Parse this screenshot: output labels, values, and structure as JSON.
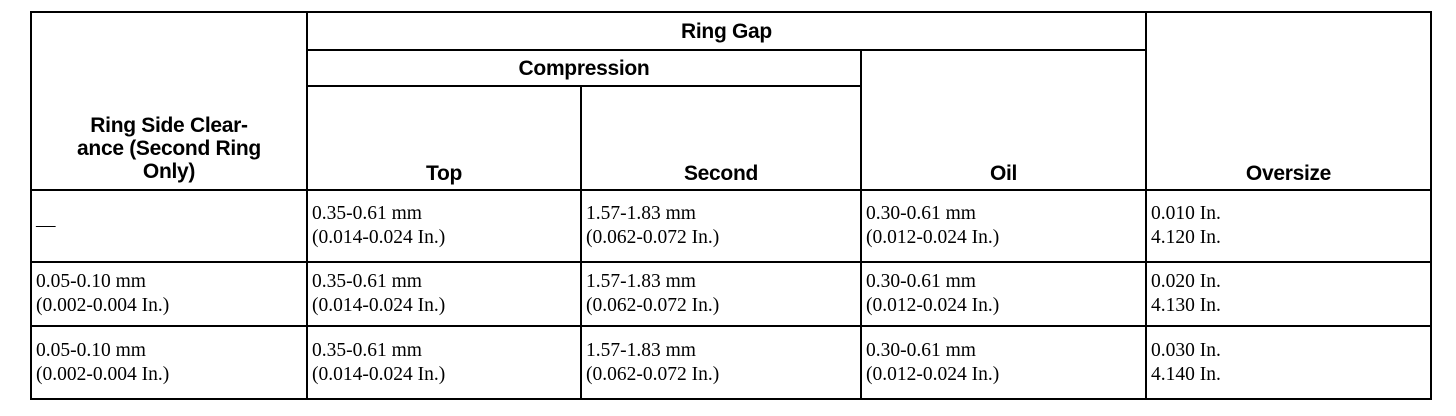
{
  "headers": {
    "ring_side_clearance": [
      "Ring Side Clear-",
      "ance (Second Ring",
      "Only)"
    ],
    "ring_gap": "Ring Gap",
    "compression": "Compression",
    "top": "Top",
    "second": "Second",
    "oil": "Oil",
    "oversize": "Oversize"
  },
  "rows": [
    {
      "side_clearance": [
        "—",
        ""
      ],
      "top": [
        "0.35-0.61 mm",
        "(0.014-0.024 In.)"
      ],
      "second": [
        "1.57-1.83 mm",
        "(0.062-0.072 In.)"
      ],
      "oil": [
        "0.30-0.61 mm",
        "(0.012-0.024 In.)"
      ],
      "oversize": [
        "0.010 In.",
        "4.120 In."
      ]
    },
    {
      "side_clearance": [
        "0.05-0.10 mm",
        "(0.002-0.004 In.)"
      ],
      "top": [
        "0.35-0.61 mm",
        "(0.014-0.024 In.)"
      ],
      "second": [
        "1.57-1.83 mm",
        "(0.062-0.072 In.)"
      ],
      "oil": [
        "0.30-0.61 mm",
        "(0.012-0.024 In.)"
      ],
      "oversize": [
        "0.020 In.",
        "4.130 In."
      ]
    },
    {
      "side_clearance": [
        "0.05-0.10 mm",
        "(0.002-0.004 In.)"
      ],
      "top": [
        "0.35-0.61 mm",
        "(0.014-0.024 In.)"
      ],
      "second": [
        "1.57-1.83 mm",
        "(0.062-0.072 In.)"
      ],
      "oil": [
        "0.30-0.61 mm",
        "(0.012-0.024 In.)"
      ],
      "oversize": [
        "0.030 In.",
        "4.140 In."
      ]
    }
  ]
}
